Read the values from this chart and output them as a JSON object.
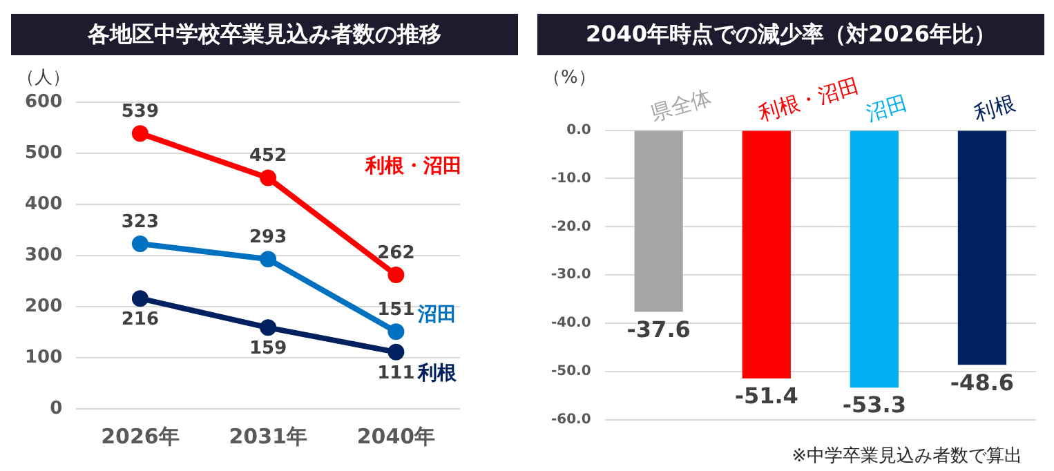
{
  "chart_data": [
    {
      "type": "line",
      "title": "各地区中学校卒業見込み者数の推移",
      "ylabel": "（人）",
      "categories": [
        "2026年",
        "2031年",
        "2040年"
      ],
      "series": [
        {
          "name": "利根・沼田",
          "color": "#ff0000",
          "values": [
            539,
            452,
            262
          ]
        },
        {
          "name": "沼田",
          "color": "#0070c0",
          "values": [
            323,
            293,
            151
          ]
        },
        {
          "name": "利根",
          "color": "#002060",
          "values": [
            216,
            159,
            111
          ]
        }
      ],
      "ylim": [
        0,
        600
      ],
      "yticks": [
        0,
        100,
        200,
        300,
        400,
        500,
        600
      ],
      "grid": "y",
      "marker": "circle",
      "data_labels": true
    },
    {
      "type": "bar",
      "title": "2040年時点での減少率（対2026年比）",
      "ylabel": "（%）",
      "categories": [
        "県全体",
        "利根・沼田",
        "沼田",
        "利根"
      ],
      "values": [
        -37.6,
        -51.4,
        -53.3,
        -48.6
      ],
      "colors": [
        "#a6a6a6",
        "#ff0000",
        "#00b0f0",
        "#002060"
      ],
      "ylim": [
        -60,
        0
      ],
      "yticks": [
        {
          "value": 0,
          "label": "0.0"
        },
        {
          "value": -10,
          "label": "-10.0"
        },
        {
          "value": -20,
          "label": "-20.0"
        },
        {
          "value": -30,
          "label": "-30.0"
        },
        {
          "value": -40,
          "label": "-40.0"
        },
        {
          "value": -50,
          "label": "-50.0"
        },
        {
          "value": -60,
          "label": "-60.0"
        }
      ],
      "grid": "y",
      "data_labels": true,
      "annotations": [
        "※中学卒業見込み者数で算出"
      ]
    }
  ]
}
